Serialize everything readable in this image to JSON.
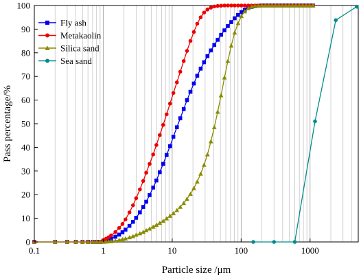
{
  "chart_data": {
    "type": "line",
    "title": "",
    "xlabel": "Particle size /μm",
    "ylabel": "Pass percentage/%",
    "xscale": "log",
    "xlim": [
      0.1,
      5000
    ],
    "ylim": [
      0,
      100
    ],
    "x_tick_labels": [
      "0.1",
      "1",
      "10",
      "100",
      "1000"
    ],
    "y_tick_labels": [
      "0",
      "10",
      "20",
      "30",
      "40",
      "50",
      "60",
      "70",
      "80",
      "90",
      "100"
    ],
    "grid": "vertical minor log grid",
    "legend_position": "top-left",
    "series": [
      {
        "name": "Fly ash",
        "color": "#0000ee",
        "marker": "square",
        "x": [
          0.1,
          0.2,
          0.3,
          0.4,
          0.5,
          0.6,
          0.7,
          0.8,
          0.9,
          1.0,
          1.1,
          1.2,
          1.3,
          1.5,
          1.7,
          1.9,
          2.1,
          2.4,
          2.7,
          3.0,
          3.4,
          3.8,
          4.2,
          4.7,
          5.3,
          5.9,
          6.6,
          7.4,
          8.3,
          9.3,
          10.4,
          11.7,
          13.1,
          14.7,
          16.4,
          18.4,
          20.6,
          23.1,
          25.9,
          29.0,
          32.5,
          36.4,
          40.8,
          45.7,
          51.2,
          57.3,
          64.2,
          71.9,
          80.6,
          90.3,
          101,
          113,
          127,
          142,
          159,
          178,
          200,
          224,
          251,
          281,
          315,
          353,
          395,
          443,
          496,
          556,
          623,
          698,
          782,
          876,
          981,
          1100
        ],
        "y": [
          0,
          0,
          0,
          0,
          0,
          0,
          0,
          0,
          0,
          0.3,
          0.6,
          1.0,
          1.4,
          2.2,
          3.1,
          4.1,
          5.2,
          6.8,
          8.5,
          10.2,
          12.5,
          14.8,
          17.0,
          19.8,
          23.0,
          26.0,
          29.5,
          33.0,
          36.8,
          40.5,
          44.5,
          48.5,
          52.3,
          56.2,
          60.0,
          63.5,
          67.0,
          70.3,
          73.3,
          76.0,
          78.6,
          81.0,
          83.3,
          85.5,
          87.6,
          89.5,
          91.3,
          93.0,
          94.6,
          96.0,
          97.2,
          98.2,
          98.9,
          99.4,
          99.7,
          99.9,
          100,
          100,
          100,
          100,
          100,
          100,
          100,
          100,
          100,
          100,
          100,
          100,
          100,
          100,
          100,
          100
        ]
      },
      {
        "name": "Metakaolin",
        "color": "#ee0000",
        "marker": "circle",
        "x": [
          0.1,
          0.2,
          0.3,
          0.4,
          0.5,
          0.6,
          0.7,
          0.8,
          0.9,
          1.0,
          1.1,
          1.2,
          1.3,
          1.5,
          1.7,
          1.9,
          2.1,
          2.4,
          2.7,
          3.0,
          3.4,
          3.8,
          4.2,
          4.7,
          5.3,
          5.9,
          6.6,
          7.4,
          8.3,
          9.3,
          10.4,
          11.7,
          13.1,
          14.7,
          16.4,
          18.4,
          20.6,
          23.1,
          25.9,
          29.0,
          32.5,
          36.4,
          40.8,
          45.7,
          51.2,
          57.3,
          64.2,
          71.9,
          80.6,
          90.3,
          101,
          113,
          127,
          142,
          159,
          178,
          200,
          224,
          251,
          281,
          315,
          353,
          395,
          443,
          496,
          556,
          623,
          698,
          782,
          876,
          981,
          1100
        ],
        "y": [
          0,
          0,
          0,
          0,
          0,
          0,
          0,
          0,
          0,
          0.8,
          1.4,
          2.0,
          2.8,
          4.2,
          5.9,
          7.6,
          9.5,
          12.5,
          15.5,
          18.5,
          22.2,
          25.8,
          29.3,
          33.0,
          37.0,
          41.0,
          45.2,
          49.5,
          54.0,
          58.5,
          63.0,
          67.5,
          72.0,
          76.5,
          80.8,
          85.0,
          88.8,
          92.3,
          95.0,
          97.0,
          98.3,
          99.1,
          99.6,
          99.8,
          99.9,
          100,
          100,
          100,
          100,
          100,
          100,
          100,
          100,
          100,
          100,
          100,
          100,
          100,
          100,
          100,
          100,
          100,
          100,
          100,
          100,
          100,
          100,
          100,
          100,
          100,
          100,
          100
        ]
      },
      {
        "name": "Silica sand",
        "color": "#8b8b00",
        "marker": "triangle",
        "x": [
          0.1,
          0.2,
          0.3,
          0.4,
          0.5,
          0.6,
          0.7,
          0.8,
          0.9,
          1.0,
          1.1,
          1.2,
          1.3,
          1.5,
          1.7,
          1.9,
          2.1,
          2.4,
          2.7,
          3.0,
          3.4,
          3.8,
          4.2,
          4.7,
          5.3,
          5.9,
          6.6,
          7.4,
          8.3,
          9.3,
          10.4,
          11.7,
          13.1,
          14.7,
          16.4,
          18.4,
          20.6,
          23.1,
          25.9,
          29.0,
          32.5,
          36.4,
          40.8,
          45.7,
          51.2,
          57.3,
          64.2,
          71.9,
          80.6,
          90.3,
          101,
          113,
          127,
          142,
          159,
          178,
          200,
          224,
          251,
          281,
          315,
          353,
          395,
          443,
          496,
          556,
          623,
          698,
          782,
          876,
          981,
          1100
        ],
        "y": [
          0,
          0,
          0,
          0,
          0,
          0,
          0,
          0,
          0,
          0,
          0.1,
          0.2,
          0.3,
          0.5,
          0.8,
          1.1,
          1.4,
          1.9,
          2.4,
          3.0,
          3.6,
          4.2,
          4.9,
          5.6,
          6.4,
          7.2,
          8.0,
          8.9,
          9.9,
          11.0,
          12.1,
          13.4,
          14.8,
          16.4,
          18.2,
          20.3,
          22.7,
          25.5,
          28.8,
          32.6,
          37.0,
          42.5,
          48.5,
          55.0,
          62.0,
          69.5,
          76.5,
          83.0,
          88.5,
          92.5,
          95.5,
          97.5,
          98.8,
          99.5,
          99.8,
          99.9,
          100,
          100,
          100,
          100,
          100,
          100,
          100,
          100,
          100,
          100,
          100,
          100,
          100,
          100,
          100,
          100
        ]
      },
      {
        "name": "Sea sand",
        "color": "#008b8b",
        "marker": "circle",
        "x": [
          150,
          300,
          600,
          1180,
          2360,
          4750
        ],
        "y": [
          0,
          0,
          0,
          51.0,
          93.8,
          99.5
        ]
      }
    ]
  }
}
